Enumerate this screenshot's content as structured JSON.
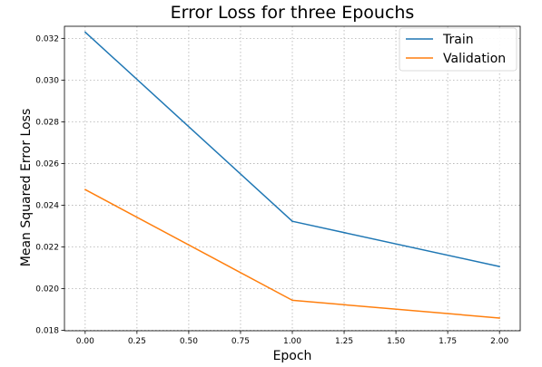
{
  "chart_data": {
    "type": "line",
    "title": "Error Loss for three Epouchs",
    "xlabel": "Epoch",
    "ylabel": "Mean Squared Error Loss",
    "xlim": [
      -0.1,
      2.1
    ],
    "ylim": [
      0.01798,
      0.03258
    ],
    "xticks": [
      0.0,
      0.25,
      0.5,
      0.75,
      1.0,
      1.25,
      1.5,
      1.75,
      2.0
    ],
    "xtick_labels": [
      "0.00",
      "0.25",
      "0.50",
      "0.75",
      "1.00",
      "1.25",
      "1.50",
      "1.75",
      "2.00"
    ],
    "yticks": [
      0.018,
      0.02,
      0.022,
      0.024,
      0.026,
      0.028,
      0.03,
      0.032
    ],
    "ytick_labels": [
      "0.018",
      "0.020",
      "0.022",
      "0.024",
      "0.026",
      "0.028",
      "0.030",
      "0.032"
    ],
    "grid": true,
    "legend_position": "top-right",
    "x": [
      0,
      1,
      2
    ],
    "series": [
      {
        "name": "Train",
        "color": "#1f77b4",
        "values": [
          0.0323,
          0.02323,
          0.02106
        ]
      },
      {
        "name": "Validation",
        "color": "#ff7f0e",
        "values": [
          0.02475,
          0.01944,
          0.01859
        ]
      }
    ]
  }
}
